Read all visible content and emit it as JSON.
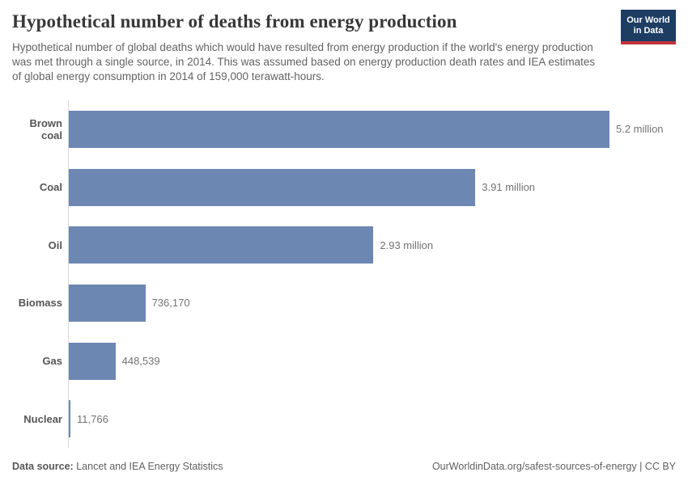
{
  "header": {
    "title": "Hypothetical number of deaths from energy production",
    "subtitle": "Hypothetical number of global deaths which would have resulted from energy production if the world's energy production was met through a single source, in 2014. This was assumed based on energy production death rates and IEA estimates of global energy consumption in 2014 of 159,000 terawatt-hours.",
    "logo": {
      "line1": "Our World",
      "line2": "in Data",
      "background_color": "#1d3d63",
      "accent_color": "#c0333b"
    }
  },
  "chart_data": {
    "type": "bar",
    "orientation": "horizontal",
    "title": "Hypothetical number of deaths from energy production",
    "categories": [
      "Brown coal",
      "Coal",
      "Oil",
      "Biomass",
      "Gas",
      "Nuclear"
    ],
    "values": [
      5200000,
      3910000,
      2930000,
      736170,
      448539,
      11766
    ],
    "value_labels": [
      "5.2 million",
      "3.91 million",
      "2.93 million",
      "736,170",
      "448,539",
      "11,766"
    ],
    "xlabel": "",
    "ylabel": "",
    "xlim": [
      0,
      5200000
    ],
    "grid": false,
    "legend": false,
    "bar_color": "#6d87b3",
    "axis_line_color": "#d9d9d9"
  },
  "footer": {
    "source_label": "Data source:",
    "source_value": " Lancet and IEA Energy Statistics",
    "right_text": "OurWorldinData.org/safest-sources-of-energy | CC BY"
  }
}
